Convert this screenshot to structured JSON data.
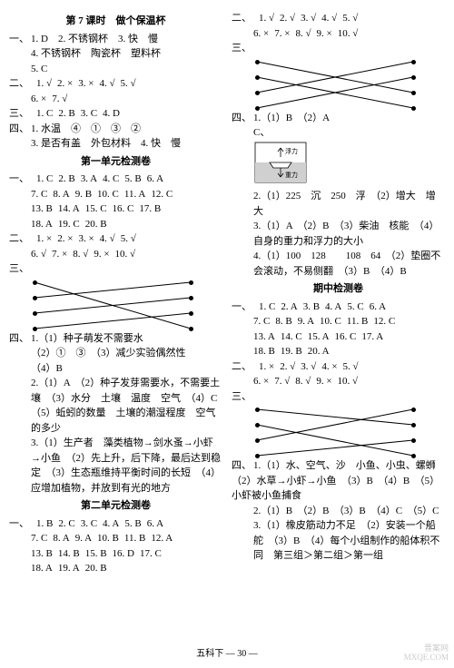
{
  "left": {
    "lesson7": {
      "title": "第 7 课时　做个保温杯",
      "sec1": {
        "lead": "一、",
        "items": [
          "1. D",
          "2. 不锈钢杯",
          "3. 快　慢",
          "4. 不锈钢杯　陶瓷杯　塑料杯",
          "5. C"
        ]
      },
      "sec2": {
        "lead": "二、",
        "items": [
          "1. √",
          "2. ×",
          "3. ×",
          "4. √",
          "5. √",
          "6. ×",
          "7. √"
        ]
      },
      "sec3": {
        "lead": "三、",
        "items": [
          "1. C",
          "2. B",
          "3. C",
          "4. D"
        ]
      },
      "sec4": {
        "lead": "四、",
        "l1": "1. 水温　④　①　③　②",
        "l2": "3. 是否有盖　外包材料　4. 快　慢"
      }
    },
    "unit1": {
      "title": "第一单元检测卷",
      "sec1": {
        "lead": "一、",
        "items": [
          "1. C",
          "2. B",
          "3. A",
          "4. C",
          "5. B",
          "6. A",
          "7. C",
          "8. A",
          "9. B",
          "10. C",
          "11. A",
          "12. C",
          "13. B",
          "14. A",
          "15. C",
          "16. C",
          "17. B",
          "18. A",
          "19. C",
          "20. B"
        ]
      },
      "sec2": {
        "lead": "二、",
        "items": [
          "1. ×",
          "2. ×",
          "3. ×",
          "4. √",
          "5. √",
          "6. √",
          "7. ×",
          "8. √",
          "9. ×",
          "10. √"
        ]
      },
      "sec3_lead": "三、",
      "sec4": {
        "lead": "四、",
        "q1a": "1.（1）种子萌发不需要水",
        "q1b": "（2）①　③　（3）减少实验偶然性",
        "q1c": "（4）B",
        "q2a": "2.（1）A　（2）种子发芽需要水，不需要土壤　（3）水分　土壤　温度　空气　（4）C　（5）蚯蚓的数量　土壤的潮湿程度　空气的多少",
        "q3a": "3.（1）生产者　藻类植物→剑水蚤→小虾→小鱼　（2）先上升，后下降，最后达到稳定　（3）生态瓶维持平衡时间的长短　（4）应增加植物，并放到有光的地方"
      }
    },
    "unit2": {
      "title": "第二单元检测卷",
      "sec1": {
        "lead": "一、",
        "items": [
          "1. B",
          "2. C",
          "3. C",
          "4. A",
          "5. B",
          "6. A",
          "7. C",
          "8. A",
          "9. A",
          "10. B",
          "11. B",
          "12. A",
          "13. B",
          "14. B",
          "15. B",
          "16. D",
          "17. C",
          "18. A",
          "19. A",
          "20. B"
        ]
      }
    }
  },
  "right": {
    "sec2": {
      "lead": "二、",
      "items": [
        "1. √",
        "2. √",
        "3. √",
        "4. √",
        "5. √",
        "6. ×",
        "7. ×",
        "8. √",
        "9. ×",
        "10. √"
      ]
    },
    "sec3_lead": "三、",
    "sec4": {
      "lead": "四、",
      "l1": "1.（1）B　（2）A",
      "l2": "C、",
      "fu": "浮力",
      "zhong": "重力",
      "q2": "2.（1）225　沉　250　浮　（2）增大　增大",
      "q3": "3.（1）A　（2）B　（3）柴油　核能　（4）自身的重力和浮力的大小",
      "q4": "4.（1）100　128　　108　64　（2）垫圈不会滚动，不易侧翻　（3）B　（4）B"
    },
    "mid": {
      "title": "期中检测卷",
      "sec1": {
        "lead": "一、",
        "items": [
          "1. C",
          "2. A",
          "3. B",
          "4. A",
          "5. C",
          "6. A",
          "7. C",
          "8. B",
          "9. A",
          "10. C",
          "11. B",
          "12. C",
          "13. A",
          "14. C",
          "15. A",
          "16. C",
          "17. A",
          "18. B",
          "19. B",
          "20. A"
        ]
      },
      "sec2": {
        "lead": "二、",
        "items": [
          "1. ×",
          "2. √",
          "3. √",
          "4. ×",
          "5. √",
          "6. ×",
          "7. √",
          "8. √",
          "9. ×",
          "10. √"
        ]
      },
      "sec3_lead": "三、",
      "sec4": {
        "lead": "四、",
        "q1a": "1.（1）水、空气、沙　小鱼、小虫、螺蛳　（2）水草→小虾→小鱼　（3）B　（4）B　（5）小虾被小鱼捕食",
        "q2": "2.（1）B　（2）B　（3）B　（4）C　（5）C",
        "q3": "3.（1）橡皮筋动力不足　（2）安装一个船舵　（3）B　（4）每个小组制作的船体积不同　第三组＞第二组＞第一组"
      }
    }
  },
  "footer": "五科下 — 30 —",
  "wm1": "晋案网",
  "wm2": "MXQE.COM",
  "lines": {
    "w": 180,
    "h": 60,
    "dotsL": [
      6,
      23,
      40,
      57
    ],
    "dotsR": [
      6,
      23,
      40,
      57
    ],
    "set1": [
      [
        0,
        3
      ],
      [
        1,
        0
      ],
      [
        2,
        1
      ],
      [
        3,
        2
      ]
    ],
    "set2": [
      [
        0,
        2
      ],
      [
        1,
        3
      ],
      [
        2,
        0
      ],
      [
        3,
        1
      ]
    ],
    "set3": [
      [
        0,
        1
      ],
      [
        1,
        3
      ],
      [
        2,
        0
      ],
      [
        3,
        2
      ]
    ]
  }
}
